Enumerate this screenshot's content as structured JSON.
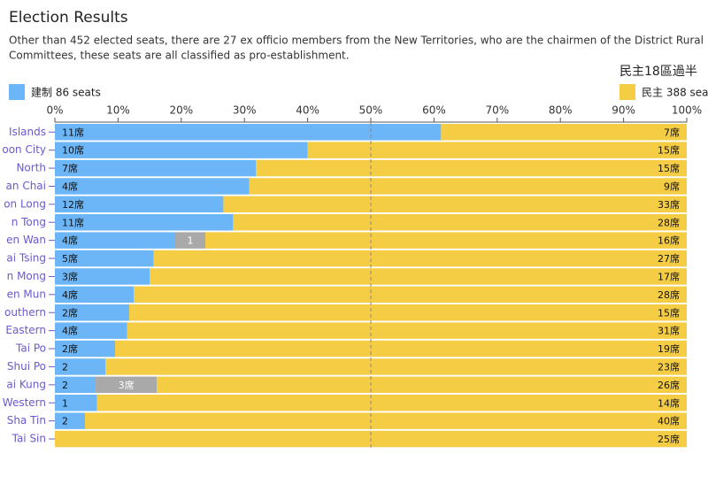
{
  "chart_data": {
    "type": "bar",
    "orientation": "horizontal",
    "stacked": "percent",
    "title": "Election Results",
    "subtitle": [
      "Other than 452 elected seats, there are 27 ex officio members from the New Territories, who are the chairmen of the District Rural",
      "Committees, these seats are all classified as pro-establishment."
    ],
    "legend_title": "民主18區過半",
    "categories": [
      "Islands",
      "oon City",
      "North",
      "an Chai",
      "on Long",
      "n Tong",
      "en Wan",
      "ai Tsing",
      "n Mong",
      "en Mun",
      "outhern",
      "Eastern",
      "Tai Po",
      "Shui Po",
      "ai Kung",
      "Western",
      "Sha Tin",
      "Tai Sin"
    ],
    "series": [
      {
        "name": "建制 86 seats",
        "color": "#6cb6f7",
        "values": [
          11,
          10,
          7,
          4,
          12,
          11,
          4,
          5,
          3,
          4,
          2,
          4,
          2,
          2,
          2,
          1,
          2,
          0
        ],
        "value_labels": [
          "11席",
          "10席",
          "7席",
          "4席",
          "12席",
          "11席",
          "4席",
          "5席",
          "3席",
          "4席",
          "2席",
          "4席",
          "2席",
          "2",
          "2",
          "1",
          "2",
          null
        ]
      },
      {
        "color": "#a9a9a9",
        "values": [
          0,
          0,
          0,
          0,
          0,
          0,
          1,
          0,
          0,
          0,
          0,
          0,
          0,
          0,
          3,
          0,
          0,
          0
        ],
        "value_labels": [
          null,
          null,
          null,
          null,
          null,
          null,
          "1",
          null,
          null,
          null,
          null,
          null,
          null,
          null,
          "3席",
          null,
          null,
          null
        ]
      },
      {
        "name": "民主 388 sea",
        "color": "#f5cd45",
        "values": [
          7,
          15,
          15,
          9,
          33,
          28,
          16,
          27,
          17,
          28,
          15,
          31,
          19,
          23,
          26,
          14,
          40,
          25
        ],
        "value_labels": [
          "7席",
          "15席",
          "15席",
          "9席",
          "33席",
          "28席",
          "16席",
          "27席",
          "17席",
          "28席",
          "15席",
          "31席",
          "19席",
          "23席",
          "26席",
          "14席",
          "40席",
          "25席"
        ]
      }
    ],
    "xlim": [
      0,
      100
    ],
    "xticks": [
      {
        "value": 0,
        "label": "0%"
      },
      {
        "value": 10,
        "label": "10%"
      },
      {
        "value": 20,
        "label": "20%"
      },
      {
        "value": 30,
        "label": "30%"
      },
      {
        "value": 40,
        "label": "40%"
      },
      {
        "value": 50,
        "label": "50%"
      },
      {
        "value": 60,
        "label": "60%"
      },
      {
        "value": 70,
        "label": "70%"
      },
      {
        "value": 80,
        "label": "80%"
      },
      {
        "value": 90,
        "label": "90%"
      },
      {
        "value": 100,
        "label": "100%"
      }
    ],
    "reference_line": 50
  }
}
